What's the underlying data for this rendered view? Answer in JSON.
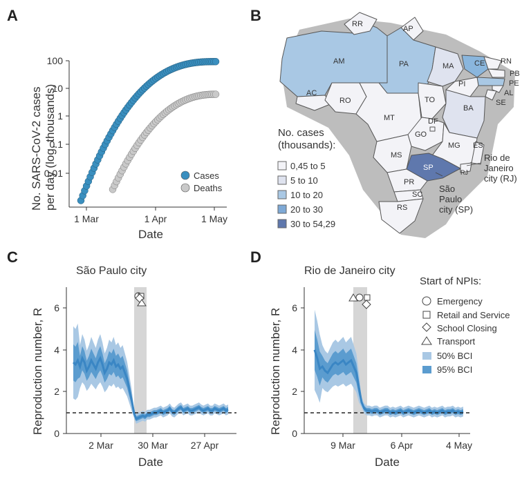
{
  "colors": {
    "cases": "#3a8fbf",
    "deaths": "#c9c9c9",
    "band50": "#a9c8e4",
    "band95": "#5b9ccf",
    "mean": "#3a86c4",
    "npi_shade": "#d6d6d6",
    "map_default": "#f3f3f7"
  },
  "chart_data": [
    {
      "panel": "A",
      "type": "scatter",
      "xlabel": "Date",
      "ylabel": "No. SARS-CoV-2 cases per day (log, thousands)",
      "yscale": "log",
      "ylim": [
        0.001,
        100
      ],
      "x_ticks": [
        "1 Mar",
        "1 Apr",
        "1 May"
      ],
      "y_ticks": [
        "0.01",
        "0.1",
        "1",
        "10",
        "100"
      ],
      "legend": [
        "Cases",
        "Deaths"
      ],
      "series": [
        {
          "name": "Cases",
          "x_day_start": 0,
          "x_day_end": 72
        },
        {
          "name": "Deaths",
          "x_day_start": 17,
          "x_day_end": 72
        }
      ]
    },
    {
      "panel": "B",
      "type": "choropleth",
      "legend_title": [
        "No. cases",
        "(thousands):"
      ],
      "bins": [
        "0,45 to 5",
        "5 to 10",
        "10 to 20",
        "20 to 30",
        "30 to 54,29"
      ],
      "state_labels": [
        "RR",
        "AP",
        "AM",
        "PA",
        "MA",
        "CE",
        "RN",
        "PB",
        "PE",
        "AL",
        "SE",
        "PI",
        "AC",
        "RO",
        "TO",
        "BA",
        "MT",
        "DF",
        "GO",
        "MG",
        "ES",
        "MS",
        "SP",
        "RJ",
        "PR",
        "SC",
        "RS"
      ],
      "annotations": [
        "Rio de",
        "Janeiro",
        "city (RJ)",
        "São",
        "Paulo",
        "city (SP)"
      ]
    },
    {
      "panel": "C",
      "type": "line",
      "title": "São Paulo city",
      "xlabel": "Date",
      "ylabel": "Reproduction number, R",
      "ylim": [
        0,
        7
      ],
      "y_ticks": [
        "0",
        "2",
        "4",
        "6"
      ],
      "x_ticks": [
        "2 Mar",
        "30 Mar",
        "27 Apr"
      ],
      "threshold": 1,
      "mean_R": [
        3.4,
        3.3,
        3.5,
        3.2,
        3.6,
        3.4,
        3.0,
        3.2,
        3.5,
        3.3,
        3.1,
        3.4,
        3.6,
        3.3,
        2.9,
        3.1,
        3.4,
        3.3,
        3.5,
        3.2,
        3.3,
        3.1,
        3.2,
        2.9,
        2.6,
        2.1,
        1.6,
        1.0,
        0.7,
        0.75,
        0.8,
        0.85,
        0.8,
        0.9,
        0.9,
        0.95,
        1.0,
        1.0,
        1.05,
        1.1,
        1.0,
        1.05,
        1.1,
        1.2,
        1.05,
        1.0,
        1.1,
        1.2,
        1.25,
        1.1,
        1.15,
        1.2,
        1.1,
        1.1,
        1.15,
        1.2,
        1.25,
        1.15,
        1.1,
        1.15,
        1.2,
        1.1,
        1.1,
        1.2,
        1.15,
        1.1,
        1.15,
        1.2,
        1.1,
        1.15
      ],
      "markers_legend": [
        "Emergency",
        "Retail and Service",
        "School Closing",
        "Transport"
      ]
    },
    {
      "panel": "D",
      "type": "line",
      "title": "Rio de Janeiro city",
      "xlabel": "Date",
      "ylabel": "Reproduction number, R",
      "ylim": [
        0,
        7
      ],
      "y_ticks": [
        "0",
        "2",
        "4",
        "6"
      ],
      "x_ticks": [
        "9 Mar",
        "6 Apr",
        "4 May"
      ],
      "threshold": 1,
      "mean_R": [
        4.0,
        3.6,
        3.1,
        3.2,
        3.0,
        2.9,
        3.1,
        3.3,
        3.4,
        3.3,
        3.4,
        3.5,
        3.3,
        3.4,
        3.5,
        3.2,
        2.9,
        2.2,
        1.5,
        1.2,
        1.1,
        1.1,
        1.05,
        1.1,
        1.1,
        1.0,
        1.05,
        1.1,
        1.1,
        1.0,
        1.05,
        1.0,
        1.05,
        1.1,
        1.0,
        1.05,
        1.1,
        1.05,
        1.0,
        1.05,
        1.1,
        1.05,
        1.0,
        1.05,
        1.1,
        1.0,
        1.05,
        1.0,
        1.05,
        1.1,
        1.0,
        1.05,
        1.05,
        1.1,
        1.0,
        1.05,
        1.0,
        1.05
      ],
      "legend_title": "Start of NPIs:",
      "legend": [
        "Emergency",
        "Retail and Service",
        "School Closing",
        "Transport",
        "50% BCI",
        "95% BCI"
      ]
    }
  ],
  "panels": {
    "A": {
      "letter": "A",
      "y1": "No. SARS-CoV-2 cases",
      "y2": "per day (log, thousands)",
      "xlabel": "Date",
      "yt": [
        "100",
        "10",
        "1",
        "0.1",
        "0.01"
      ],
      "xt": [
        "1 Mar",
        "1 Apr",
        "1 May"
      ],
      "leg": [
        "Cases",
        "Deaths"
      ]
    },
    "B": {
      "letter": "B",
      "lt1": "No. cases",
      "lt2": "(thousands):",
      "bins": [
        "0,45 to 5",
        "5 to 10",
        "10 to 20",
        "20 to 30",
        "30 to 54,29"
      ],
      "rj": [
        "Rio de",
        "Janeiro",
        "city (RJ)"
      ],
      "sp": [
        "São",
        "Paulo",
        "city (SP)"
      ]
    },
    "C": {
      "letter": "C",
      "title": "São Paulo city",
      "ylabel": "Reproduction number, R",
      "xlabel": "Date",
      "yt": [
        "6",
        "4",
        "2",
        "0"
      ],
      "xt": [
        "2 Mar",
        "30 Mar",
        "27 Apr"
      ]
    },
    "D": {
      "letter": "D",
      "title": "Rio de Janeiro city",
      "ylabel": "Reproduction number, R",
      "xlabel": "Date",
      "yt": [
        "6",
        "4",
        "2",
        "0"
      ],
      "xt": [
        "9 Mar",
        "6 Apr",
        "4 May"
      ],
      "lt": "Start of NPIs:",
      "leg": [
        "Emergency",
        "Retail and Service",
        "School Closing",
        "Transport",
        "50% BCI",
        "95% BCI"
      ]
    }
  }
}
